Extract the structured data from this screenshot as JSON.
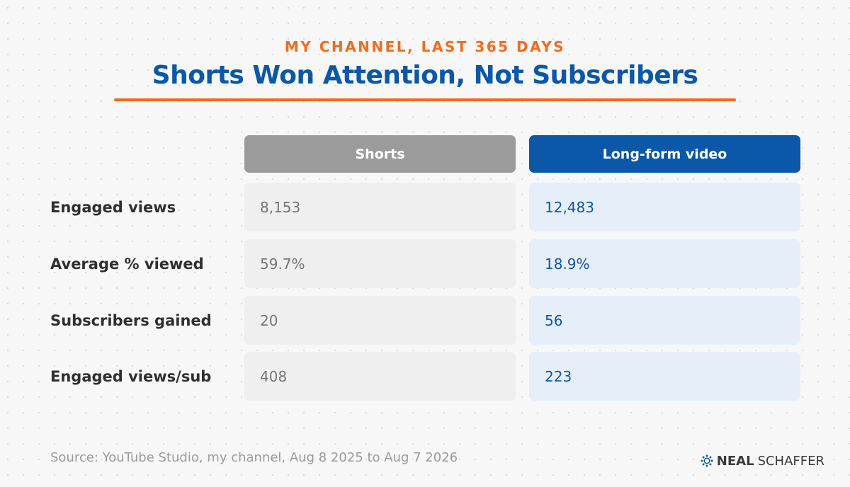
{
  "header": {
    "kicker": "MY CHANNEL, LAST 365 DAYS",
    "title": "Shorts Won Attention, Not Subscribers"
  },
  "colors": {
    "accent_orange": "#f26b1d",
    "brand_blue": "#0b57a8",
    "shorts_header_gray": "#9b9b9b",
    "long_cell_bg": "#e6eff9"
  },
  "chart_data": {
    "type": "table",
    "columns": [
      "Shorts",
      "Long-form video"
    ],
    "rows": [
      {
        "label": "Engaged views",
        "values": [
          "8,153",
          "12,483"
        ]
      },
      {
        "label": "Average % viewed",
        "values": [
          "59.7%",
          "18.9%"
        ]
      },
      {
        "label": "Subscribers gained",
        "values": [
          "20",
          "56"
        ]
      },
      {
        "label": "Engaged views/sub",
        "values": [
          "408",
          "223"
        ]
      }
    ]
  },
  "footer": {
    "source": "Source: YouTube Studio, my channel, Aug 8 2025 to Aug 7 2026",
    "logo_bold": "NEAL",
    "logo_light": "SCHAFFER",
    "logo_icon": "network-ring-icon"
  }
}
